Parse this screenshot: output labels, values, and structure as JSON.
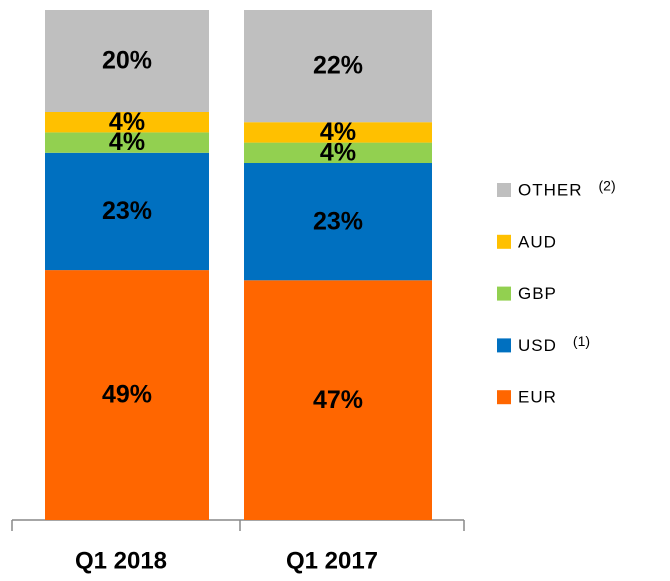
{
  "chart_data": {
    "type": "stacked_bar",
    "categories": [
      "Q1 2018",
      "Q1 2017"
    ],
    "ylim": [
      0,
      100
    ],
    "series": [
      {
        "name": "EUR",
        "color": "#ff6600",
        "values": [
          49,
          47
        ],
        "value_labels": [
          "49%",
          "47%"
        ]
      },
      {
        "name": "USD",
        "note": "(1)",
        "color": "#0070c0",
        "values": [
          23,
          23
        ],
        "value_labels": [
          "23%",
          "23%"
        ]
      },
      {
        "name": "GBP",
        "color": "#92d050",
        "values": [
          4,
          4
        ],
        "value_labels": [
          "4%",
          "4%"
        ]
      },
      {
        "name": "AUD",
        "color": "#ffc000",
        "values": [
          4,
          4
        ],
        "value_labels": [
          "4%",
          "4%"
        ]
      },
      {
        "name": "OTHER",
        "note": "(2)",
        "color": "#bfbfbf",
        "values": [
          20,
          22
        ],
        "value_labels": [
          "20%",
          "22%"
        ]
      }
    ]
  }
}
